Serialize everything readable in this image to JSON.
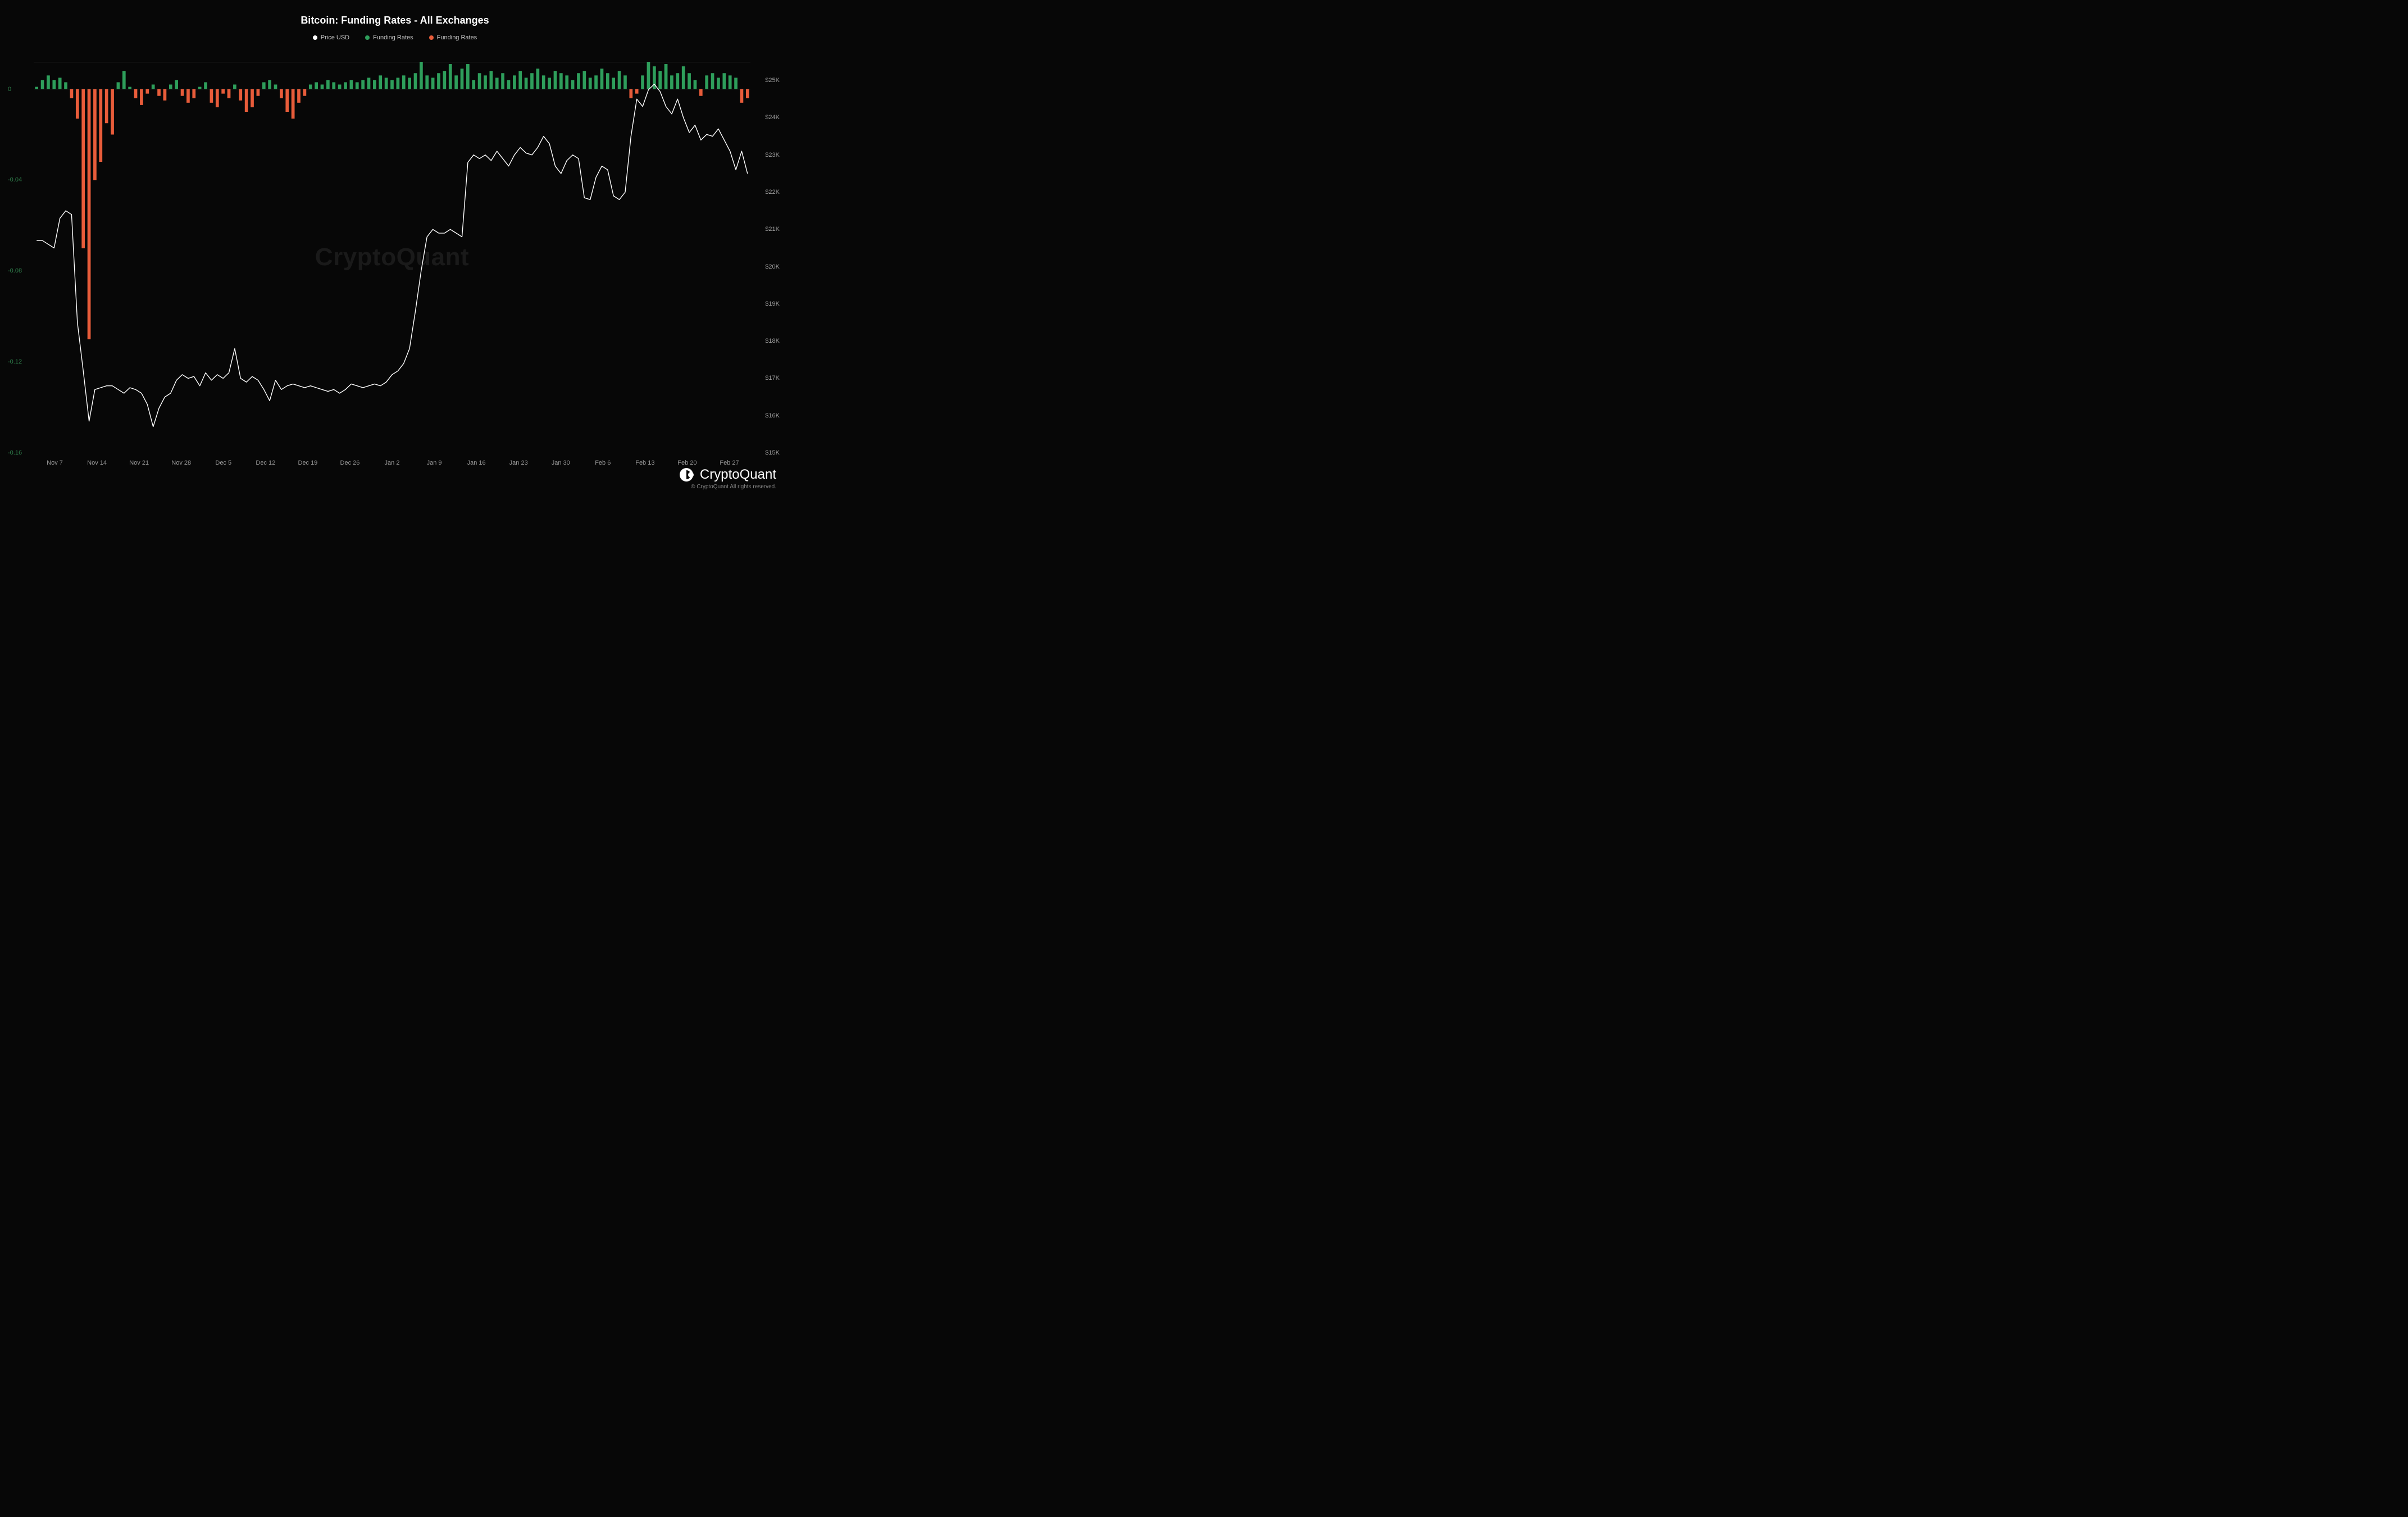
{
  "chart": {
    "type": "combo-bar-line",
    "title": "Bitcoin: Funding Rates - All Exchanges",
    "title_fontsize": 18,
    "title_color": "#ffffff",
    "background_color": "#070707",
    "grid_color": "#2a2a2a",
    "watermark_text": "CryptoQuant",
    "watermark_color": "#2a2a2a",
    "legend": [
      {
        "label": "Price USD",
        "color": "#ffffff"
      },
      {
        "label": "Funding Rates",
        "color": "#2e9e5b"
      },
      {
        "label": "Funding Rates",
        "color": "#e85c3a"
      }
    ],
    "x_axis": {
      "labels": [
        "Nov 7",
        "Nov 14",
        "Nov 21",
        "Nov 28",
        "Dec 5",
        "Dec 12",
        "Dec 19",
        "Dec 26",
        "Jan 2",
        "Jan 9",
        "Jan 16",
        "Jan 23",
        "Jan 30",
        "Feb 6",
        "Feb 13",
        "Feb 20",
        "Feb 27"
      ],
      "label_color": "#9a9a9a",
      "label_fontsize": 11
    },
    "y_left": {
      "min": -0.16,
      "max": 0.012,
      "ticks": [
        0,
        -0.04,
        -0.08,
        -0.12,
        -0.16
      ],
      "tick_labels": [
        "0",
        "-0.04",
        "-0.08",
        "-0.12",
        "-0.16"
      ],
      "label_color": "#2e7d4a",
      "label_fontsize": 11
    },
    "y_right": {
      "min": 15000,
      "max": 25500,
      "ticks": [
        25000,
        24000,
        23000,
        22000,
        21000,
        20000,
        19000,
        18000,
        17000,
        16000,
        15000
      ],
      "tick_labels": [
        "$25K",
        "$24K",
        "$23K",
        "$22K",
        "$21K",
        "$20K",
        "$19K",
        "$18K",
        "$17K",
        "$16K",
        "$15K"
      ],
      "label_color": "#9a9a9a",
      "label_fontsize": 11
    },
    "bars": {
      "positive_color": "#2e9e5b",
      "negative_color": "#e85c3a",
      "width_frac": 0.55,
      "values": [
        0.001,
        0.004,
        0.006,
        0.004,
        0.005,
        0.003,
        -0.004,
        -0.013,
        -0.07,
        -0.11,
        -0.04,
        -0.032,
        -0.015,
        -0.02,
        0.003,
        0.008,
        0.001,
        -0.004,
        -0.007,
        -0.002,
        0.002,
        -0.003,
        -0.005,
        0.002,
        0.004,
        -0.003,
        -0.006,
        -0.004,
        0.001,
        0.003,
        -0.006,
        -0.008,
        -0.002,
        -0.004,
        0.002,
        -0.005,
        -0.01,
        -0.008,
        -0.003,
        0.003,
        0.004,
        0.002,
        -0.004,
        -0.01,
        -0.013,
        -0.006,
        -0.003,
        0.002,
        0.003,
        0.002,
        0.004,
        0.003,
        0.002,
        0.003,
        0.004,
        0.003,
        0.004,
        0.005,
        0.004,
        0.006,
        0.005,
        0.004,
        0.005,
        0.006,
        0.005,
        0.007,
        0.012,
        0.006,
        0.005,
        0.007,
        0.008,
        0.011,
        0.006,
        0.009,
        0.011,
        0.004,
        0.007,
        0.006,
        0.008,
        0.005,
        0.007,
        0.004,
        0.006,
        0.008,
        0.005,
        0.007,
        0.009,
        0.006,
        0.005,
        0.008,
        0.007,
        0.006,
        0.004,
        0.007,
        0.008,
        0.005,
        0.006,
        0.009,
        0.007,
        0.005,
        0.008,
        0.006,
        -0.004,
        -0.002,
        0.006,
        0.013,
        0.01,
        0.008,
        0.011,
        0.006,
        0.007,
        0.01,
        0.007,
        0.004,
        -0.003,
        0.006,
        0.007,
        0.005,
        0.007,
        0.006,
        0.005,
        -0.006,
        -0.004
      ]
    },
    "line": {
      "color": "#ffffff",
      "width": 1.4,
      "values": [
        20700,
        20700,
        20600,
        20500,
        21300,
        21500,
        21400,
        18500,
        17200,
        15850,
        16700,
        16750,
        16800,
        16800,
        16700,
        16600,
        16750,
        16700,
        16600,
        16300,
        15700,
        16200,
        16500,
        16600,
        16950,
        17100,
        17000,
        17050,
        16800,
        17150,
        16950,
        17100,
        17000,
        17150,
        17800,
        17000,
        16900,
        17050,
        16950,
        16700,
        16400,
        16950,
        16700,
        16800,
        16850,
        16800,
        16750,
        16800,
        16750,
        16700,
        16650,
        16700,
        16600,
        16700,
        16850,
        16800,
        16750,
        16800,
        16850,
        16800,
        16900,
        17100,
        17200,
        17400,
        17800,
        18800,
        19900,
        20800,
        21000,
        20900,
        20900,
        21000,
        20900,
        20800,
        22800,
        23000,
        22900,
        23000,
        22850,
        23100,
        22900,
        22700,
        23000,
        23200,
        23050,
        23000,
        23200,
        23500,
        23300,
        22700,
        22500,
        22850,
        23000,
        22900,
        21850,
        21800,
        22400,
        22700,
        22600,
        21900,
        21800,
        22000,
        23500,
        24500,
        24300,
        24750,
        24900,
        24700,
        24300,
        24100,
        24500,
        24000,
        23600,
        23800,
        23400,
        23550,
        23500,
        23700,
        23400,
        23100,
        22600,
        23100,
        22500
      ]
    }
  },
  "footer": {
    "brand": "CryptoQuant",
    "copyright": "© CryptoQuant All rights reserved.",
    "brand_color": "#ffffff"
  }
}
